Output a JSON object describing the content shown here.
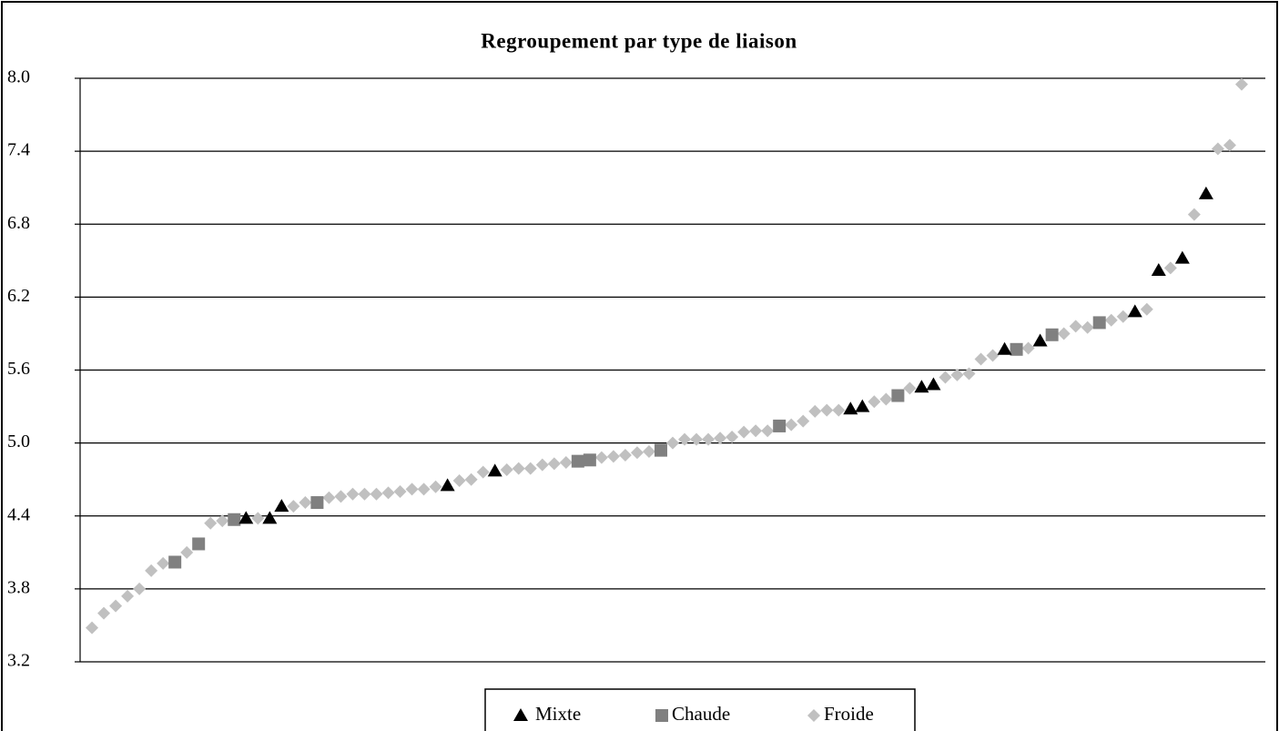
{
  "chart_data": {
    "type": "scatter",
    "title": "Regroupement par type de liaison",
    "xlim": [
      0,
      100
    ],
    "ylim": [
      3.2,
      8.0
    ],
    "yticks": [
      {
        "value": 3.2,
        "label": "3.2"
      },
      3.8,
      4.4,
      {
        "value": 5.0,
        "label": "5.0"
      },
      5.6,
      6.2,
      6.8,
      7.4,
      {
        "value": 8.0,
        "label": "8.0"
      }
    ],
    "grid": true,
    "legend": "bottom",
    "series": [
      {
        "name": "Mixte",
        "color": "#000000",
        "marker": "triangle",
        "x": [
          14,
          16,
          17,
          31,
          35,
          65,
          66,
          71,
          72,
          78,
          81,
          89,
          91,
          93,
          95
        ],
        "values": [
          4.38,
          4.38,
          4.48,
          4.65,
          4.77,
          5.28,
          5.3,
          5.46,
          5.48,
          5.77,
          5.84,
          6.08,
          6.42,
          6.52,
          7.05
        ]
      },
      {
        "name": "Chaude",
        "color": "#808080",
        "marker": "square",
        "x": [
          8,
          10,
          13,
          20,
          42,
          43,
          49,
          59,
          69,
          79,
          82,
          86
        ],
        "values": [
          4.02,
          4.17,
          4.37,
          4.51,
          4.85,
          4.86,
          4.94,
          5.14,
          5.39,
          5.77,
          5.89,
          5.99
        ]
      },
      {
        "name": "Froide",
        "color": "#c0c0c0",
        "marker": "diamond",
        "x": [
          1,
          2,
          3,
          4,
          5,
          6,
          7,
          9,
          11,
          12,
          15,
          18,
          19,
          21,
          22,
          23,
          24,
          25,
          26,
          27,
          28,
          29,
          30,
          32,
          33,
          34,
          36,
          37,
          38,
          39,
          40,
          41,
          44,
          45,
          46,
          47,
          48,
          50,
          51,
          52,
          53,
          54,
          55,
          56,
          57,
          58,
          60,
          61,
          62,
          63,
          64,
          67,
          68,
          70,
          73,
          74,
          75,
          76,
          77,
          80,
          83,
          84,
          85,
          87,
          88,
          90,
          92,
          94,
          96,
          97,
          98
        ],
        "values": [
          3.48,
          3.6,
          3.66,
          3.74,
          3.8,
          3.95,
          4.01,
          4.1,
          4.34,
          4.36,
          4.38,
          4.48,
          4.51,
          4.55,
          4.56,
          4.58,
          4.58,
          4.58,
          4.59,
          4.6,
          4.62,
          4.62,
          4.64,
          4.69,
          4.7,
          4.76,
          4.78,
          4.79,
          4.79,
          4.82,
          4.83,
          4.84,
          4.88,
          4.89,
          4.9,
          4.92,
          4.93,
          5.0,
          5.03,
          5.03,
          5.03,
          5.04,
          5.05,
          5.09,
          5.1,
          5.1,
          5.15,
          5.18,
          5.26,
          5.27,
          5.27,
          5.34,
          5.36,
          5.45,
          5.54,
          5.56,
          5.57,
          5.69,
          5.72,
          5.78,
          5.9,
          5.96,
          5.95,
          6.01,
          6.04,
          6.1,
          6.44,
          6.88,
          7.42,
          7.45,
          7.95
        ]
      }
    ]
  }
}
